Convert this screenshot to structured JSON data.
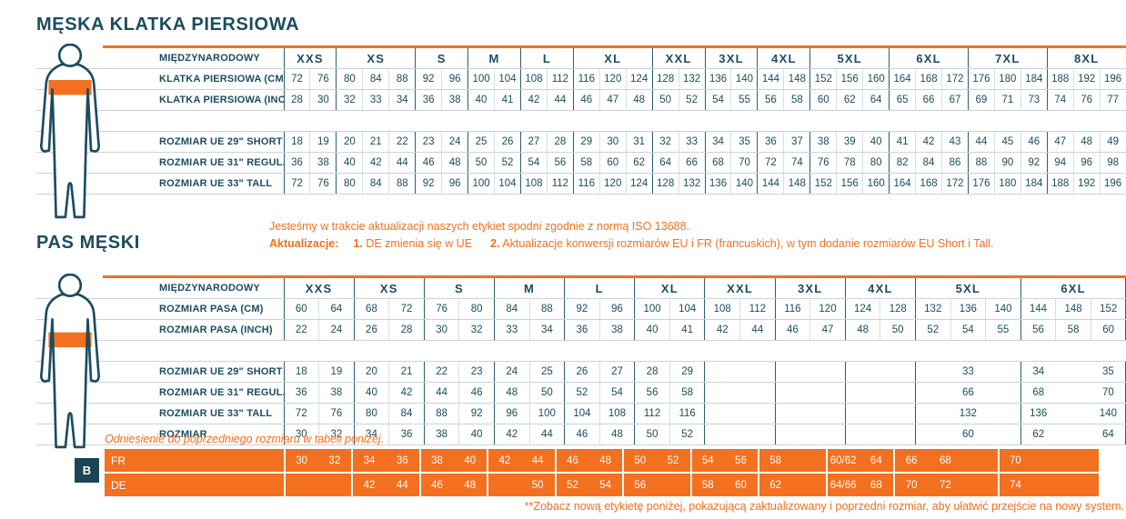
{
  "colors": {
    "accent_orange": "#F2701F",
    "navy": "#1C4C5E",
    "grid_light": "#C9D3D9"
  },
  "chest": {
    "title": "MĘSKA KLATKA PIERSIOWA",
    "int_label": "MIĘDZYNARODOWY",
    "groups": [
      {
        "label": "XXS",
        "cols": 2
      },
      {
        "label": "XS",
        "cols": 3
      },
      {
        "label": "S",
        "cols": 2
      },
      {
        "label": "M",
        "cols": 2
      },
      {
        "label": "L",
        "cols": 2
      },
      {
        "label": "XL",
        "cols": 3
      },
      {
        "label": "XXL",
        "cols": 2
      },
      {
        "label": "3XL",
        "cols": 2
      },
      {
        "label": "4XL",
        "cols": 2
      },
      {
        "label": "5XL",
        "cols": 3
      },
      {
        "label": "6XL",
        "cols": 3
      },
      {
        "label": "7XL",
        "cols": 3
      },
      {
        "label": "8XL",
        "cols": 3
      }
    ],
    "rows": [
      {
        "label": "KLATKA PIERSIOWA (CM)",
        "cells": [
          "72",
          "76",
          "80",
          "84",
          "88",
          "92",
          "96",
          "100",
          "104",
          "108",
          "112",
          "116",
          "120",
          "124",
          "128",
          "132",
          "136",
          "140",
          "144",
          "148",
          "152",
          "156",
          "160",
          "164",
          "168",
          "172",
          "176",
          "180",
          "184",
          "188",
          "192",
          "196"
        ]
      },
      {
        "label": "KLATKA PIERSIOWA (INCH)",
        "cells": [
          "28",
          "30",
          "32",
          "33",
          "34",
          "36",
          "38",
          "40",
          "41",
          "42",
          "44",
          "46",
          "47",
          "48",
          "50",
          "52",
          "54",
          "55",
          "56",
          "58",
          "60",
          "62",
          "64",
          "65",
          "66",
          "67",
          "69",
          "71",
          "73",
          "74",
          "76",
          "77"
        ]
      },
      {
        "gap": true
      },
      {
        "label": "ROZMIAR UE 29\" SHORT",
        "cells": [
          "18",
          "19",
          "20",
          "21",
          "22",
          "23",
          "24",
          "25",
          "26",
          "27",
          "28",
          "29",
          "30",
          "31",
          "32",
          "33",
          "34",
          "35",
          "36",
          "37",
          "38",
          "39",
          "40",
          "41",
          "42",
          "43",
          "44",
          "45",
          "46",
          "47",
          "48",
          "49"
        ]
      },
      {
        "label": "ROZMIAR UE 31\" REGULAR",
        "cells": [
          "36",
          "38",
          "40",
          "42",
          "44",
          "46",
          "48",
          "50",
          "52",
          "54",
          "56",
          "58",
          "60",
          "62",
          "64",
          "66",
          "68",
          "70",
          "72",
          "74",
          "76",
          "78",
          "80",
          "82",
          "84",
          "86",
          "88",
          "90",
          "92",
          "94",
          "96",
          "98"
        ]
      },
      {
        "label": "ROZMIAR UE 33\" TALL",
        "cells": [
          "72",
          "76",
          "80",
          "84",
          "88",
          "92",
          "96",
          "100",
          "104",
          "108",
          "112",
          "116",
          "120",
          "124",
          "128",
          "132",
          "136",
          "140",
          "144",
          "148",
          "152",
          "156",
          "160",
          "164",
          "168",
          "172",
          "176",
          "180",
          "184",
          "188",
          "192",
          "196"
        ]
      }
    ]
  },
  "notes": {
    "line1": "Jesteśmy w trakcie aktualizacji naszych etykiet spodni zgodnie z normą ISO 13688.",
    "line2_parts": [
      {
        "t": "Aktualizacje:",
        "b": true
      },
      {
        "t": "1.",
        "b": true,
        "ml": 16
      },
      {
        "t": " DE zmienia się w UE"
      },
      {
        "t": "2.",
        "b": true,
        "ml": 20
      },
      {
        "t": " Aktualizacje konwersji rozmiarów EU i FR (francuskich), w tym dodanie rozmiarów EU Short i Tall."
      }
    ]
  },
  "waist": {
    "title": "PAS MĘSKI",
    "int_label": "MIĘDZYNARODOWY",
    "groups": [
      {
        "label": "XXS",
        "cols": 2
      },
      {
        "label": "XS",
        "cols": 2
      },
      {
        "label": "S",
        "cols": 2
      },
      {
        "label": "M",
        "cols": 2
      },
      {
        "label": "L",
        "cols": 2
      },
      {
        "label": "XL",
        "cols": 2
      },
      {
        "label": "XXL",
        "cols": 2
      },
      {
        "label": "3XL",
        "cols": 2
      },
      {
        "label": "4XL",
        "cols": 2
      },
      {
        "label": "5XL",
        "cols": 3
      },
      {
        "label": "6XL",
        "cols": 3
      }
    ],
    "rows": [
      {
        "label": "ROZMIAR PASA (CM)",
        "cells": [
          "60",
          "64",
          "68",
          "72",
          "76",
          "80",
          "84",
          "88",
          "92",
          "96",
          "100",
          "104",
          "108",
          "112",
          "116",
          "120",
          "124",
          "128",
          "132",
          "136",
          "140",
          "144",
          "148",
          "152"
        ]
      },
      {
        "label": "ROZMIAR PASA (INCH)",
        "cells": [
          "22",
          "24",
          "26",
          "28",
          "30",
          "32",
          "33",
          "34",
          "36",
          "38",
          "40",
          "41",
          "42",
          "44",
          "46",
          "47",
          "48",
          "50",
          "52",
          "54",
          "55",
          "56",
          "58",
          "60"
        ]
      },
      {
        "gap": true
      },
      {
        "label": "ROZMIAR UE 29\" SHORT",
        "cells": [
          "18",
          "19",
          "20",
          "21",
          "22",
          "23",
          "24",
          "25",
          "26",
          "27",
          "28",
          "29",
          {
            "t": "30",
            "s": 2,
            "k": "m2"
          },
          {
            "t": "31",
            "s": 2,
            "k": "m2"
          },
          {
            "t": "32",
            "s": 2,
            "k": "m2"
          },
          {
            "t": "33",
            "s": 3
          },
          {
            "t": "34"
          },
          {
            "t": "",
            "k": "nb"
          },
          {
            "t": "35",
            "k": "nb"
          }
        ]
      },
      {
        "label": "ROZMIAR UE 31\" REGULAR",
        "cells": [
          "36",
          "38",
          "40",
          "42",
          "44",
          "46",
          "48",
          "50",
          "52",
          "54",
          "56",
          "58",
          {
            "t": "60",
            "s": 2,
            "k": "m2"
          },
          {
            "t": "62",
            "s": 2,
            "k": "m2"
          },
          {
            "t": "64",
            "s": 2,
            "k": "m2"
          },
          {
            "t": "66",
            "s": 3
          },
          {
            "t": "68"
          },
          {
            "t": "",
            "k": "nb"
          },
          {
            "t": "70",
            "k": "nb"
          }
        ]
      },
      {
        "label": "ROZMIAR UE 33\" TALL",
        "cells": [
          "72",
          "76",
          "80",
          "84",
          "88",
          "92",
          "96",
          "100",
          "104",
          "108",
          "112",
          "116",
          {
            "t": "120",
            "s": 2,
            "k": "m2"
          },
          {
            "t": "124",
            "s": 2,
            "k": "m2"
          },
          {
            "t": "128",
            "s": 2,
            "k": "m2"
          },
          {
            "t": "132",
            "s": 3
          },
          {
            "t": "136"
          },
          {
            "t": "",
            "k": "nb"
          },
          {
            "t": "140",
            "k": "nb"
          }
        ]
      },
      {
        "label": "ROZMIAR",
        "cells": [
          "30",
          "32",
          "34",
          "36",
          "38",
          "40",
          "42",
          "44",
          "46",
          "48",
          "50",
          "52",
          {
            "t": "54",
            "s": 2,
            "k": "m2"
          },
          {
            "t": "56",
            "s": 2,
            "k": "m2"
          },
          {
            "t": "58",
            "s": 2,
            "k": "m2"
          },
          {
            "t": "60",
            "s": 3
          },
          {
            "t": "62"
          },
          {
            "t": "",
            "k": "nb"
          },
          {
            "t": "64",
            "k": "nb"
          }
        ]
      }
    ]
  },
  "fr_de": {
    "ref_note": "Odniesienie do poprzedniego rozmiaru w tabeli poniżej.",
    "badge": "B",
    "rows": [
      {
        "label": "FR",
        "cells": [
          "30",
          "32",
          "34",
          "36",
          "38",
          "40",
          "42",
          "44",
          "46",
          "48",
          "50",
          "52",
          "54",
          "56",
          "58",
          "",
          "60/62",
          "64",
          "66",
          "68",
          "",
          "70",
          "",
          ""
        ]
      },
      {
        "label": "DE",
        "cells": [
          "",
          "",
          "42",
          "44",
          "46",
          "48",
          "",
          "50",
          "52",
          "54",
          "56",
          "",
          "58",
          "60",
          "62",
          "",
          "64/66",
          "68",
          "70",
          "72",
          "",
          "74",
          "",
          ""
        ]
      }
    ],
    "footer": "**Zobacz nową etykietę poniżej, pokazującą zaktualizowany i poprzedni rozmiar, aby ułatwić przejście na nowy system."
  }
}
